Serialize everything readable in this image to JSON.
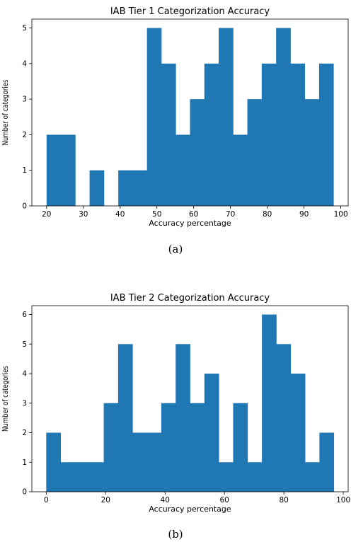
{
  "chart_data": [
    {
      "type": "bar",
      "title": "IAB Tier 1 Categorization Accuracy",
      "xlabel": "Accuracy percentage",
      "ylabel": "Number of categories",
      "caption": "(a)",
      "bar_color": "#1f77b4",
      "bin_edges": [
        20,
        23.9,
        27.8,
        31.7,
        35.6,
        39.5,
        43.4,
        47.3,
        51.2,
        55.1,
        59.0,
        62.9,
        66.8,
        70.7,
        74.6,
        78.5,
        82.4,
        86.3,
        90.2,
        94.1,
        98.0
      ],
      "values": [
        2,
        2,
        0,
        1,
        0,
        1,
        1,
        5,
        4,
        2,
        3,
        4,
        5,
        2,
        3,
        4,
        5,
        4,
        3,
        4
      ],
      "xlim": [
        16,
        102
      ],
      "ylim": [
        0,
        5.25
      ],
      "xticks": [
        20,
        30,
        40,
        50,
        60,
        70,
        80,
        90,
        100
      ],
      "yticks": [
        0,
        1,
        2,
        3,
        4,
        5
      ],
      "grid": false
    },
    {
      "type": "bar",
      "title": "IAB Tier 2 Categorization Accuracy",
      "xlabel": "Accuracy percentage",
      "ylabel": "Number of categories",
      "caption": "(b)",
      "bar_color": "#1f77b4",
      "bin_edges": [
        0,
        4.84,
        9.68,
        14.52,
        19.36,
        24.2,
        29.04,
        33.88,
        38.72,
        43.56,
        48.4,
        53.24,
        58.08,
        62.92,
        67.76,
        72.6,
        77.44,
        82.28,
        87.12,
        91.96,
        96.8
      ],
      "values": [
        2,
        1,
        1,
        1,
        3,
        5,
        2,
        2,
        3,
        5,
        3,
        4,
        1,
        3,
        1,
        6,
        5,
        4,
        1,
        2
      ],
      "xlim": [
        -4.84,
        101.64
      ],
      "ylim": [
        0,
        6.3
      ],
      "xticks": [
        0,
        20,
        40,
        60,
        80,
        100
      ],
      "yticks": [
        0,
        1,
        2,
        3,
        4,
        5,
        6
      ],
      "grid": false
    }
  ]
}
